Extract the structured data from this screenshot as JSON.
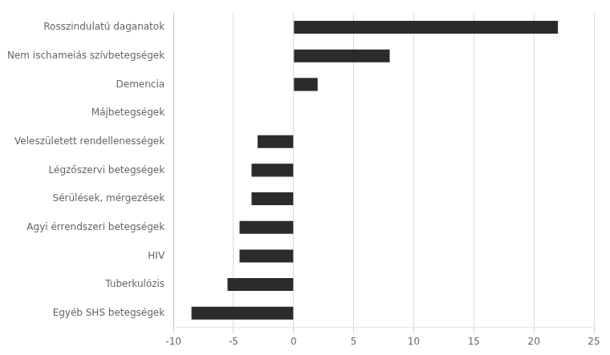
{
  "chart_data": {
    "type": "bar",
    "orientation": "horizontal",
    "categories": [
      "Egyéb SHS betegségek",
      "Tuberkulózis",
      "HIV",
      "Agyi érrendszeri betegségek",
      "Sérülések, mérgezések",
      "Légzőszervi betegségek",
      "Veleszületett rendellenességek",
      "Májbetegségek",
      "Demencia",
      "Nem ischameiás szívbetegségek",
      "Rosszindulatú daganatok"
    ],
    "values": [
      -8.5,
      -5.5,
      -4.5,
      -4.5,
      -3.5,
      -3.5,
      -3.0,
      0.0,
      2.0,
      8.0,
      22.0
    ],
    "color": "#2b2b2b",
    "xlim": [
      -10,
      25
    ],
    "xticks": [
      -10,
      -5,
      0,
      5,
      10,
      15,
      20,
      25
    ],
    "grid": true
  }
}
